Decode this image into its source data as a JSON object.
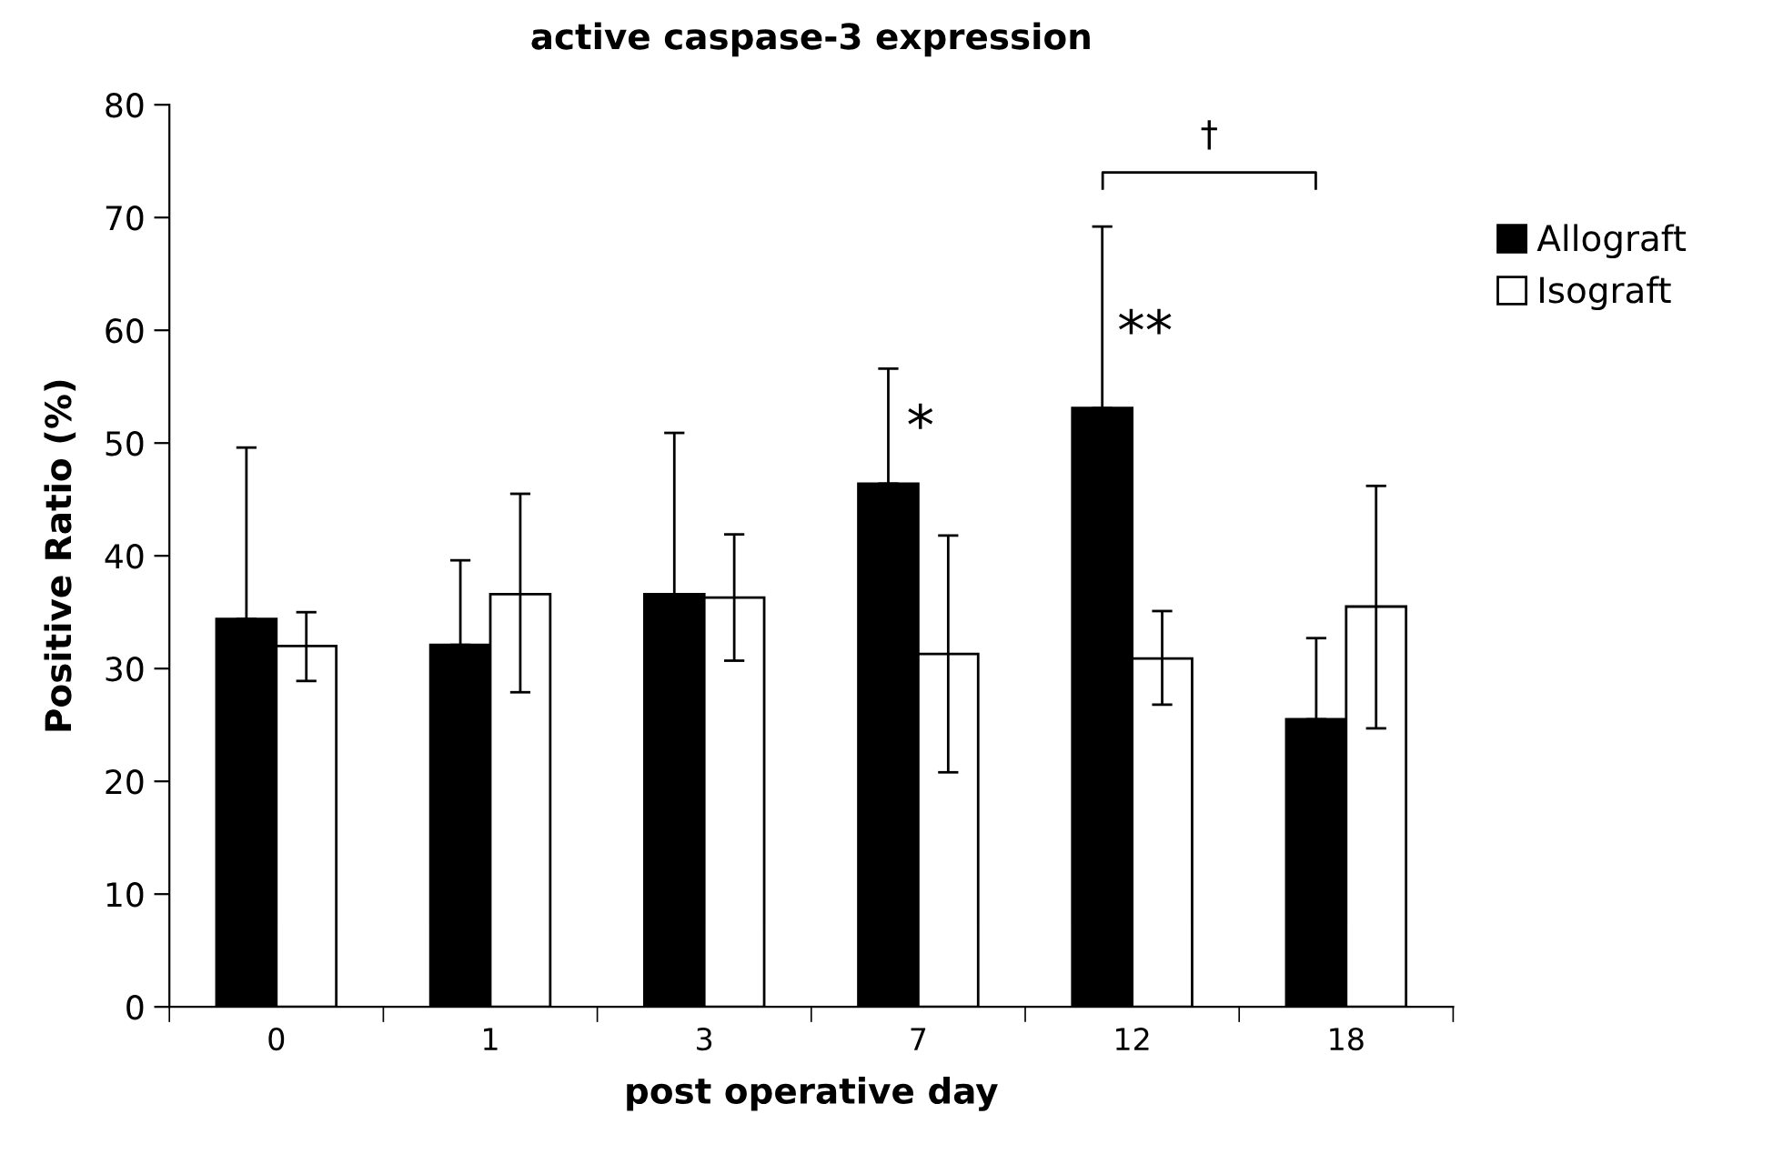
{
  "chart_data": {
    "type": "bar",
    "title": "active caspase-3 expression",
    "xlabel": "post operative day",
    "ylabel": "Positive Ratio (%)",
    "categories": [
      "0",
      "1",
      "3",
      "7",
      "12",
      "18"
    ],
    "series": [
      {
        "name": "Allograft",
        "color": "#000000",
        "values": [
          34.4,
          32.1,
          36.6,
          46.4,
          53.1,
          25.5
        ],
        "errors": [
          [
            34.4,
            49.6
          ],
          [
            32.1,
            39.6
          ],
          [
            36.6,
            50.9
          ],
          [
            46.4,
            56.6
          ],
          [
            53.1,
            69.2
          ],
          [
            25.5,
            32.7
          ]
        ]
      },
      {
        "name": "Isograft",
        "color": "#ffffff",
        "values": [
          32.0,
          36.6,
          36.3,
          31.3,
          30.9,
          35.5
        ],
        "errors": [
          [
            28.9,
            35.0
          ],
          [
            27.9,
            45.5
          ],
          [
            30.7,
            41.9
          ],
          [
            20.8,
            41.8
          ],
          [
            26.8,
            35.1
          ],
          [
            24.7,
            46.2
          ]
        ]
      }
    ],
    "annotations": [
      "*",
      "**",
      "†"
    ],
    "ylim": [
      0,
      80
    ],
    "yticks": [
      0,
      10,
      20,
      30,
      40,
      50,
      60,
      70,
      80
    ],
    "grid": false,
    "legend": "right"
  }
}
